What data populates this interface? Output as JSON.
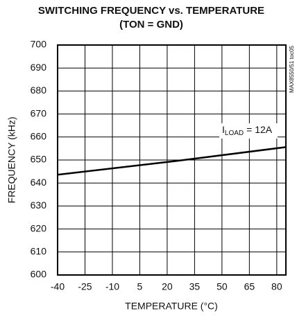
{
  "chart_data": {
    "type": "line",
    "title": "SWITCHING FREQUENCY vs. TEMPERATURE",
    "subtitle": "(TON = GND)",
    "x_label": "TEMPERATURE (°C)",
    "y_label": "FREQUENCY (kHz)",
    "side_note": "MAX8550/51 toc05",
    "annotation": {
      "main": "I",
      "subscript": "LOAD",
      "text": "= 12A"
    },
    "x": [
      -40,
      25,
      85
    ],
    "series": [
      {
        "name": "ILOAD = 12A",
        "color": "#000000",
        "values": [
          643.6,
          649.6,
          655.6
        ]
      }
    ],
    "xlim": [
      -40,
      85
    ],
    "xticks": [
      -40,
      -25,
      -10,
      5,
      20,
      35,
      50,
      65,
      80
    ],
    "ylim": [
      600,
      700
    ],
    "yticks": [
      600,
      610,
      620,
      630,
      640,
      650,
      660,
      670,
      680,
      690,
      700
    ],
    "grid": true
  }
}
